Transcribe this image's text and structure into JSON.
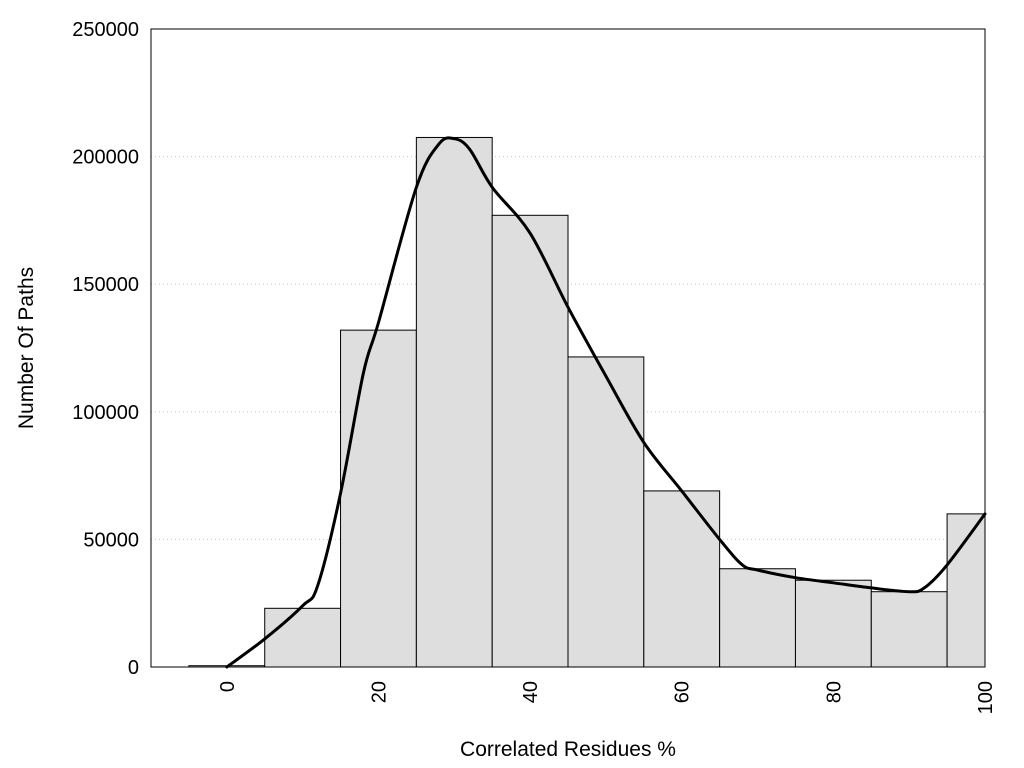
{
  "chart_data": {
    "type": "bar",
    "title": "",
    "xlabel": "Correlated Residues %",
    "ylabel": "Number Of Paths",
    "xlim": [
      -10,
      100
    ],
    "ylim": [
      0,
      250000
    ],
    "x_ticks": [
      "0",
      "20",
      "40",
      "60",
      "80",
      "100"
    ],
    "y_ticks": [
      "0",
      "50000",
      "100000",
      "150000",
      "200000",
      "250000"
    ],
    "grid": true,
    "legend": "none",
    "bins": [
      {
        "center": 0,
        "value": 500
      },
      {
        "center": 10,
        "value": 23000
      },
      {
        "center": 20,
        "value": 132000
      },
      {
        "center": 30,
        "value": 207500
      },
      {
        "center": 40,
        "value": 177000
      },
      {
        "center": 50,
        "value": 121500
      },
      {
        "center": 60,
        "value": 69000
      },
      {
        "center": 70,
        "value": 38500
      },
      {
        "center": 80,
        "value": 34000
      },
      {
        "center": 90,
        "value": 29500
      },
      {
        "center": 100,
        "value": 60000
      }
    ],
    "curve": {
      "x": [
        0,
        5,
        10,
        12,
        15,
        18,
        20,
        25,
        28,
        30,
        32,
        35,
        40,
        45,
        50,
        55,
        60,
        65,
        68,
        70,
        75,
        80,
        85,
        90,
        92,
        95,
        100
      ],
      "y": [
        0,
        11000,
        24000,
        32000,
        68000,
        115000,
        135000,
        188000,
        205000,
        207000,
        203000,
        188000,
        170000,
        141000,
        114000,
        88000,
        69000,
        50000,
        40000,
        38000,
        35000,
        33000,
        31000,
        29500,
        31000,
        40000,
        60000
      ]
    },
    "colors": {
      "bar_fill": "#dedede",
      "bar_stroke": "#000000",
      "curve": "#000000"
    }
  }
}
